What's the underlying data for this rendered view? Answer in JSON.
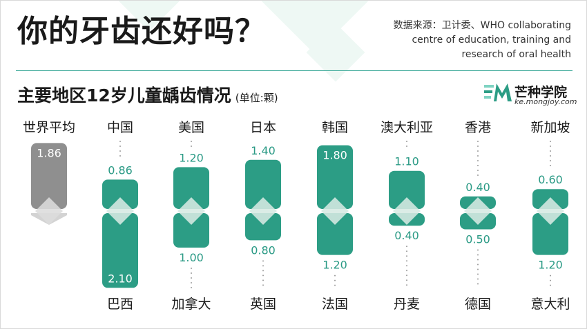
{
  "header": {
    "title": "你的牙齿还好吗？",
    "source_lines": [
      "数据来源：卫计委、WHO collaborating",
      "centre of education, training and",
      "research of oral health"
    ],
    "subtitle": "主要地区12岁儿童龋齿情况",
    "unit": "(单位:颗)"
  },
  "logo": {
    "name": "芒种学院",
    "url": "ke.mongjoy.com"
  },
  "colors": {
    "teal": "#2c9d85",
    "gray": "#8f8f8f",
    "light_gray": "#d3d3d3",
    "text": "#1a1a1a"
  },
  "chart_data": {
    "type": "bar",
    "title": "主要地区12岁儿童龋齿情况",
    "unit": "(单位:颗)",
    "world_average": {
      "label": "世界平均",
      "value": 1.86,
      "value_label": "1.86"
    },
    "pairs": [
      {
        "top": {
          "label": "中国",
          "value": 0.86,
          "value_label": "0.86"
        },
        "bottom": {
          "label": "巴西",
          "value": 2.1,
          "value_label": "2.10"
        }
      },
      {
        "top": {
          "label": "美国",
          "value": 1.2,
          "value_label": "1.20"
        },
        "bottom": {
          "label": "加拿大",
          "value": 1.0,
          "value_label": "1.00"
        }
      },
      {
        "top": {
          "label": "日本",
          "value": 1.4,
          "value_label": "1.40"
        },
        "bottom": {
          "label": "英国",
          "value": 0.8,
          "value_label": "0.80"
        }
      },
      {
        "top": {
          "label": "韩国",
          "value": 1.8,
          "value_label": "1.80"
        },
        "bottom": {
          "label": "法国",
          "value": 1.2,
          "value_label": "1.20"
        }
      },
      {
        "top": {
          "label": "澳大利亚",
          "value": 1.1,
          "value_label": "1.10"
        },
        "bottom": {
          "label": "丹麦",
          "value": 0.4,
          "value_label": "0.40"
        }
      },
      {
        "top": {
          "label": "香港",
          "value": 0.4,
          "value_label": "0.40"
        },
        "bottom": {
          "label": "德国",
          "value": 0.5,
          "value_label": "0.50"
        }
      },
      {
        "top": {
          "label": "新加坡",
          "value": 0.6,
          "value_label": "0.60"
        },
        "bottom": {
          "label": "意大利",
          "value": 1.2,
          "value_label": "1.20"
        }
      }
    ]
  }
}
